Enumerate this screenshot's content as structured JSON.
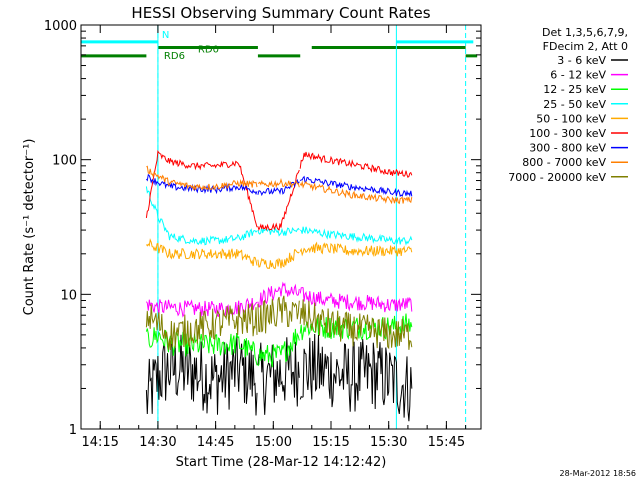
{
  "chart_data": {
    "type": "line",
    "title": "HESSI Observing Summary Count Rates",
    "xlabel": "Start Time (28-Mar-12 14:12:42)",
    "ylabel": "Count Rate (s⁻¹ detector⁻¹)",
    "x_unit": "time",
    "xlim": [
      "14:10",
      "15:54"
    ],
    "x_ticks": [
      "14:15",
      "14:30",
      "14:45",
      "15:00",
      "15:15",
      "15:30",
      "15:45"
    ],
    "y_scale": "log",
    "ylim": [
      1,
      1000
    ],
    "y_ticks": [
      "1",
      "10",
      "100",
      "1000"
    ],
    "grid": false,
    "legend_position": "right",
    "legend_header": [
      "Det 1,3,5,6,7,9,",
      "FDecim 2, Att 0"
    ],
    "footer_date": "28-Mar-2012 18:56",
    "observing_bars": [
      {
        "label": "N",
        "color": "#00ffff",
        "level": 750,
        "segments": [
          [
            "14:10",
            "14:30"
          ],
          [
            "15:32",
            "15:52"
          ]
        ],
        "dashed_lines": [
          "14:30",
          "15:50"
        ]
      },
      {
        "label": "RD0",
        "color": "#007f00",
        "level": 680,
        "segments": [
          [
            "14:30",
            "14:56"
          ],
          [
            "15:10",
            "15:50"
          ]
        ]
      },
      {
        "label": "RD6",
        "color": "#007f00",
        "level": 590,
        "segments": [
          [
            "14:10",
            "14:27"
          ],
          [
            "14:56",
            "15:07"
          ],
          [
            "15:50",
            "15:53"
          ]
        ]
      }
    ],
    "night_markers": [
      "14:30",
      "15:32"
    ],
    "gaps": [
      [
        "14:56",
        "14:57"
      ],
      [
        "15:07",
        "15:08"
      ]
    ],
    "series": [
      {
        "name": "3 - 6 keV",
        "color": "#000000",
        "x": [
          "14:27",
          "14:30",
          "14:33",
          "14:39",
          "14:45",
          "14:51",
          "14:56",
          "15:02",
          "15:08",
          "15:14",
          "15:20",
          "15:26",
          "15:31",
          "15:36"
        ],
        "y": [
          1.6,
          2.4,
          2.8,
          2.7,
          2.3,
          2.8,
          2.3,
          2.6,
          2.8,
          2.7,
          2.4,
          2.6,
          2.3,
          2.0
        ]
      },
      {
        "name": "6 - 12 keV",
        "color": "#ff00ff",
        "x": [
          "14:27",
          "14:30",
          "14:33",
          "14:39",
          "14:45",
          "14:51",
          "14:56",
          "15:02",
          "15:08",
          "15:14",
          "15:20",
          "15:26",
          "15:31",
          "15:36"
        ],
        "y": [
          8.5,
          8.0,
          8.0,
          7.8,
          7.8,
          8.0,
          9.0,
          11.0,
          9.8,
          9.0,
          8.8,
          8.6,
          8.3,
          8.5
        ]
      },
      {
        "name": "12 - 25 keV",
        "color": "#00ff00",
        "x": [
          "14:27",
          "14:30",
          "14:33",
          "14:39",
          "14:45",
          "14:51",
          "14:56",
          "15:02",
          "15:08",
          "15:14",
          "15:20",
          "15:26",
          "15:31",
          "15:36"
        ],
        "y": [
          4.5,
          5.0,
          4.3,
          4.2,
          4.2,
          4.3,
          3.5,
          3.5,
          5.8,
          5.7,
          5.7,
          5.7,
          5.7,
          6.0
        ]
      },
      {
        "name": "25 - 50 keV",
        "color": "#00ffff",
        "x": [
          "14:27",
          "14:30",
          "14:33",
          "14:39",
          "14:45",
          "14:51",
          "14:56",
          "15:02",
          "15:08",
          "15:14",
          "15:20",
          "15:26",
          "15:31",
          "15:36"
        ],
        "y": [
          62,
          38,
          27,
          25,
          25,
          26,
          30,
          29,
          30,
          28,
          27,
          26,
          25,
          25
        ]
      },
      {
        "name": "50 - 100 keV",
        "color": "#ffaa00",
        "x": [
          "14:27",
          "14:30",
          "14:33",
          "14:39",
          "14:45",
          "14:51",
          "14:56",
          "15:02",
          "15:08",
          "15:14",
          "15:20",
          "15:26",
          "15:31",
          "15:36"
        ],
        "y": [
          24,
          22,
          20,
          20,
          20,
          20,
          17,
          17,
          22,
          22,
          21,
          21,
          21,
          21
        ]
      },
      {
        "name": "100 - 300 keV",
        "color": "#ff0000",
        "x": [
          "14:27",
          "14:30",
          "14:33",
          "14:39",
          "14:45",
          "14:51",
          "14:56",
          "15:02",
          "15:08",
          "15:14",
          "15:20",
          "15:26",
          "15:31",
          "15:36"
        ],
        "y": [
          37,
          110,
          97,
          90,
          90,
          95,
          31,
          32,
          110,
          100,
          93,
          86,
          80,
          78
        ]
      },
      {
        "name": "300 - 800 keV",
        "color": "#0000ff",
        "x": [
          "14:27",
          "14:30",
          "14:33",
          "14:39",
          "14:45",
          "14:51",
          "14:56",
          "15:02",
          "15:08",
          "15:14",
          "15:20",
          "15:26",
          "15:31",
          "15:36"
        ],
        "y": [
          75,
          68,
          63,
          61,
          60,
          63,
          58,
          58,
          72,
          67,
          63,
          60,
          57,
          56
        ]
      },
      {
        "name": "800 - 7000 keV",
        "color": "#ff7f00",
        "x": [
          "14:27",
          "14:30",
          "14:33",
          "14:39",
          "14:45",
          "14:51",
          "14:56",
          "15:02",
          "15:08",
          "15:14",
          "15:20",
          "15:26",
          "15:31",
          "15:36"
        ],
        "y": [
          85,
          76,
          68,
          63,
          63,
          67,
          65,
          67,
          65,
          60,
          55,
          52,
          50,
          50
        ]
      },
      {
        "name": "7000 - 20000 keV",
        "color": "#7f7f00",
        "x": [
          "14:27",
          "14:30",
          "14:33",
          "14:39",
          "14:45",
          "14:51",
          "14:56",
          "15:02",
          "15:08",
          "15:14",
          "15:20",
          "15:26",
          "15:31",
          "15:36"
        ],
        "y": [
          7.0,
          6.0,
          5.0,
          5.5,
          6.0,
          6.5,
          6.5,
          7.5,
          7.0,
          6.0,
          5.5,
          5.3,
          5.0,
          5.0
        ]
      }
    ]
  }
}
